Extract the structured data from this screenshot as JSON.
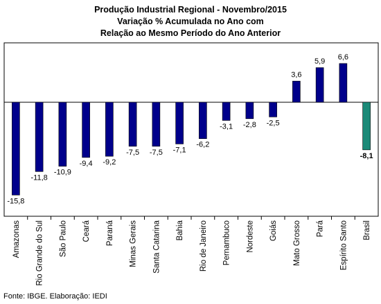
{
  "chart_data": {
    "type": "bar",
    "title": [
      "Produção Industrial Regional - Novembro/2015",
      "Variação % Acumulada no Ano com",
      "Relação ao Mesmo Período do Ano Anterior"
    ],
    "categories": [
      "Amazonas",
      "Rio Grande do Sul",
      "São Paulo",
      "Ceará",
      "Paraná",
      "Minas Gerais",
      "Santa Catarina",
      "Bahia",
      "Rio de Janeiro",
      "Pernambuco",
      "Nordeste",
      "Goiás",
      "Mato Grosso",
      "Pará",
      "Espírito Santo",
      "Brasil"
    ],
    "values": [
      -15.8,
      -11.8,
      -10.9,
      -9.4,
      -9.2,
      -7.5,
      -7.5,
      -7.1,
      -6.2,
      -3.1,
      -2.8,
      -2.5,
      3.6,
      5.9,
      6.6,
      -8.1
    ],
    "value_labels": [
      "-15,8",
      "-11,8",
      "-10,9",
      "-9,4",
      "-9,2",
      "-7,5",
      "-7,5",
      "-7,1",
      "-6,2",
      "-3,1",
      "-2,8",
      "-2,5",
      "3,6",
      "5,9",
      "6,6",
      "-8,1"
    ],
    "highlight_index": 15,
    "colors": {
      "bar": "#00008b",
      "highlight": "#1b8a78",
      "bar_edge": "#000000",
      "axis": "#000000",
      "border": "#000000"
    },
    "ylim": [
      -18,
      10
    ],
    "grid": false,
    "legend": "none",
    "xlabel": "",
    "ylabel": ""
  },
  "source": "Fonte: IBGE. Elaboração: IEDI"
}
